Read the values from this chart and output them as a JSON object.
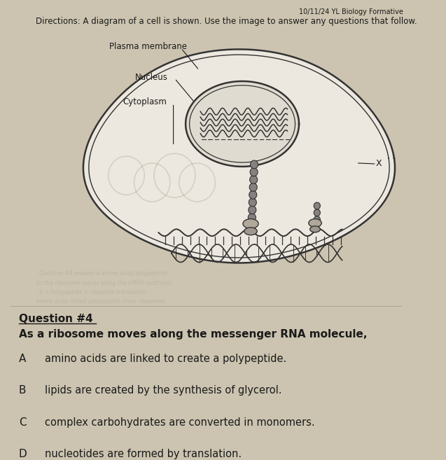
{
  "bg_color": "#ccc4b0",
  "page_color": "#ddd8cc",
  "header_date": "10/11/24 YL Biology Formative",
  "directions": "Directions: A diagram of a cell is shown. Use the image to answer any questions that follow.",
  "labels": {
    "plasma_membrane": "Plasma membrane",
    "nucleus": "Nucleus",
    "cytoplasm": "Cytoplasm",
    "x_label": "X"
  },
  "question_number": "Question #4",
  "question_text": "As a ribosome moves along the messenger RNA molecule,",
  "choices": [
    {
      "letter": "A",
      "text": "amino acids are linked to create a polypeptide."
    },
    {
      "letter": "B",
      "text": "lipids are created by the synthesis of glycerol."
    },
    {
      "letter": "C",
      "text": "complex carbohydrates are converted in monomers."
    },
    {
      "letter": "D",
      "text": "nucleotides are formed by translation."
    }
  ],
  "text_color": "#1a1a1a",
  "faded_text_color": "#aaa090",
  "line_color": "#333333",
  "cell_fill": "#ede8df",
  "nucleus_fill": "#e0dbd0",
  "figsize": [
    6.37,
    6.57
  ],
  "dpi": 100
}
